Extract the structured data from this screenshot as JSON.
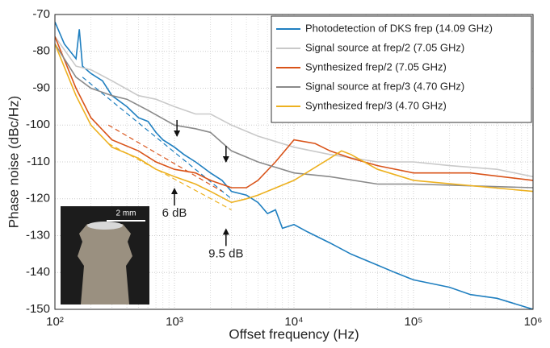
{
  "chart_data": {
    "type": "line",
    "xlabel": "Offset frequency (Hz)",
    "ylabel": "Phase noise (dBc/Hz)",
    "xscale": "log",
    "grid": true,
    "legend": "upper right",
    "xlim": [
      100,
      1000000
    ],
    "ylim": [
      -150,
      -70
    ],
    "xticks": [
      {
        "value": 100,
        "label": "10²"
      },
      {
        "value": 1000,
        "label": "10³"
      },
      {
        "value": 10000,
        "label": "10⁴"
      },
      {
        "value": 100000,
        "label": "10⁵"
      },
      {
        "value": 1000000,
        "label": "10⁶"
      }
    ],
    "yticks": [
      -150,
      -140,
      -130,
      -120,
      -110,
      -100,
      -90,
      -80,
      -70
    ],
    "series": [
      {
        "name": "Photodetection of DKS frep (14.09 GHz)",
        "color": "#1f7fc0",
        "x": [
          100,
          120,
          150,
          160,
          170,
          200,
          250,
          300,
          400,
          500,
          600,
          700,
          800,
          1000,
          1200,
          1500,
          2000,
          2500,
          3000,
          4000,
          5000,
          6000,
          7000,
          8000,
          10000,
          13000,
          20000,
          30000,
          50000,
          70000,
          100000,
          200000,
          300000,
          500000,
          1000000
        ],
        "values": [
          -72,
          -78,
          -82,
          -74,
          -84,
          -86,
          -88,
          -92,
          -95,
          -98,
          -99,
          -102,
          -104,
          -106,
          -108,
          -110,
          -113,
          -115,
          -118,
          -119,
          -121,
          -124,
          -123,
          -128,
          -127,
          -129,
          -132,
          -135,
          -138,
          -140,
          -142,
          -144,
          -146,
          -147,
          -150
        ]
      },
      {
        "name": "Signal source at frep/2 (7.05 GHz)",
        "color": "#c9c9c9",
        "x": [
          100,
          150,
          200,
          300,
          500,
          700,
          1000,
          1500,
          2000,
          3000,
          5000,
          10000,
          20000,
          50000,
          100000,
          200000,
          500000,
          1000000
        ],
        "values": [
          -76,
          -84,
          -85,
          -88,
          -92,
          -93,
          -95,
          -97,
          -97,
          -100,
          -103,
          -106,
          -108,
          -110,
          -110,
          -111,
          -112,
          -114
        ]
      },
      {
        "name": "Synthesized frep/2 (7.05 GHz)",
        "color": "#d95319",
        "x": [
          100,
          150,
          200,
          300,
          500,
          700,
          1000,
          1500,
          2000,
          3000,
          4000,
          5000,
          7000,
          10000,
          15000,
          20000,
          30000,
          50000,
          100000,
          300000,
          1000000
        ],
        "values": [
          -76,
          -90,
          -98,
          -104,
          -107,
          -110,
          -112,
          -113,
          -115,
          -117,
          -117,
          -115,
          -110,
          -104,
          -105,
          -107,
          -109,
          -111,
          -113,
          -113,
          -115
        ]
      },
      {
        "name": "Signal source at frep/3 (4.70 GHz)",
        "color": "#8a8a8a",
        "x": [
          100,
          150,
          200,
          300,
          400,
          600,
          1000,
          1500,
          2000,
          3000,
          5000,
          10000,
          20000,
          50000,
          100000,
          1000000
        ],
        "values": [
          -78,
          -87,
          -90,
          -92,
          -93,
          -96,
          -100,
          -101,
          -102,
          -107,
          -110,
          -113,
          -114,
          -116,
          -116,
          -117
        ]
      },
      {
        "name": "Synthesized frep/3 (4.70 GHz)",
        "color": "#edb120",
        "x": [
          100,
          150,
          200,
          300,
          500,
          700,
          1000,
          1500,
          2000,
          3000,
          4000,
          5000,
          10000,
          20000,
          25000,
          30000,
          50000,
          100000,
          1000000
        ],
        "values": [
          -78,
          -92,
          -100,
          -106,
          -109,
          -112,
          -114,
          -116,
          -118,
          -121,
          -120,
          -119,
          -115,
          -109,
          -107,
          -108,
          -112,
          -115,
          -118
        ]
      }
    ],
    "guides": [
      {
        "color": "#1f7fc0",
        "x": [
          170,
          3000
        ],
        "values": [
          -87,
          -120
        ]
      },
      {
        "color": "#edb120",
        "x": [
          280,
          3000
        ],
        "values": [
          -105,
          -123
        ]
      },
      {
        "color": "#d95319",
        "x": [
          280,
          2500
        ],
        "values": [
          -100,
          -118
        ]
      }
    ],
    "annotations": [
      {
        "text": "6 dB",
        "x": 1000,
        "y": -124
      },
      {
        "text": "9.5 dB",
        "x": 2700,
        "y": -135
      }
    ],
    "inset_label": "2 mm"
  }
}
